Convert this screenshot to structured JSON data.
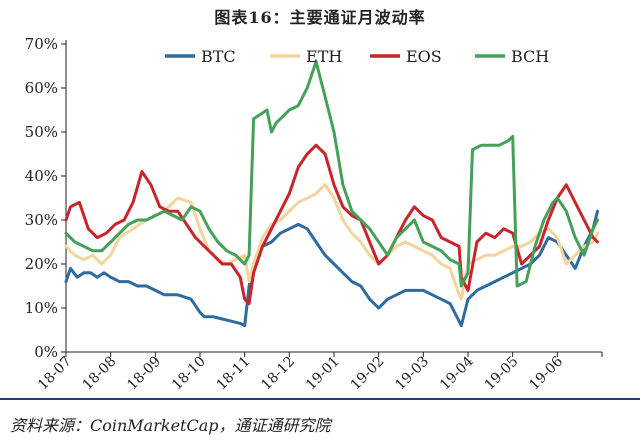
{
  "figure_title": "图表16：主要通证月波动率",
  "source": "资料来源：CoinMarketCap，通证通研究院",
  "chart_data": {
    "type": "line",
    "ylim": [
      0,
      70
    ],
    "yticks": [
      0,
      10,
      20,
      30,
      40,
      50,
      60,
      70
    ],
    "ytick_labels": [
      "0%",
      "10%",
      "20%",
      "30%",
      "40%",
      "50%",
      "60%",
      "70%"
    ],
    "x_range": [
      0,
      12
    ],
    "xtick_labels": [
      "18-07",
      "18-08",
      "18-09",
      "18-10",
      "18-11",
      "18-12",
      "19-01",
      "19-02",
      "19-03",
      "19-04",
      "19-05",
      "19-06"
    ],
    "grid": false,
    "legend": "top",
    "series": [
      {
        "name": "BTC",
        "color": "#2e6b9e",
        "x": [
          0,
          0.1,
          0.25,
          0.4,
          0.55,
          0.7,
          0.85,
          1.0,
          1.2,
          1.4,
          1.6,
          1.8,
          2.0,
          2.2,
          2.5,
          2.8,
          3.0,
          3.1,
          3.3,
          3.5,
          3.7,
          3.9,
          4.0,
          4.1,
          4.2,
          4.4,
          4.6,
          4.8,
          5.0,
          5.2,
          5.4,
          5.6,
          5.8,
          6.0,
          6.2,
          6.4,
          6.6,
          6.8,
          7.0,
          7.2,
          7.4,
          7.6,
          7.8,
          8.0,
          8.2,
          8.4,
          8.6,
          8.8,
          8.85,
          9.0,
          9.2,
          9.4,
          9.6,
          9.8,
          10.0,
          10.2,
          10.4,
          10.6,
          10.7,
          10.8,
          11.0,
          11.2,
          11.4,
          11.6,
          11.8,
          11.9
        ],
        "y": [
          16,
          19,
          17,
          18,
          18,
          17,
          18,
          17,
          16,
          16,
          15,
          15,
          14,
          13,
          13,
          12,
          9,
          8,
          8,
          7.5,
          7,
          6.5,
          6,
          15,
          20,
          24,
          25,
          27,
          28,
          29,
          28,
          25,
          22,
          20,
          18,
          16,
          15,
          12,
          10,
          12,
          13,
          14,
          14,
          14,
          13,
          12,
          11,
          7,
          6,
          12,
          14,
          15,
          16,
          17,
          18,
          19,
          20,
          22,
          24,
          26,
          25,
          22,
          19,
          24,
          28,
          32
        ]
      },
      {
        "name": "ETH",
        "color": "#f2d49c",
        "x": [
          0,
          0.2,
          0.4,
          0.6,
          0.8,
          1.0,
          1.2,
          1.5,
          1.8,
          2.0,
          2.2,
          2.5,
          2.8,
          3.0,
          3.2,
          3.4,
          3.6,
          3.8,
          4.0,
          4.1,
          4.2,
          4.4,
          4.6,
          4.8,
          5.0,
          5.2,
          5.4,
          5.6,
          5.8,
          6.0,
          6.2,
          6.4,
          6.6,
          6.8,
          7.0,
          7.2,
          7.4,
          7.6,
          7.8,
          8.0,
          8.2,
          8.4,
          8.6,
          8.8,
          8.85,
          9.0,
          9.2,
          9.4,
          9.6,
          9.8,
          10.0,
          10.2,
          10.4,
          10.6,
          10.8,
          11.0,
          11.2,
          11.4,
          11.6,
          11.8,
          11.9
        ],
        "y": [
          24,
          22,
          21,
          22,
          20,
          22,
          26,
          28,
          30,
          31,
          32,
          35,
          34,
          28,
          23,
          21,
          20,
          21,
          22,
          16,
          20,
          26,
          29,
          30,
          32,
          34,
          35,
          36,
          38,
          35,
          30,
          27,
          25,
          22,
          20,
          22,
          24,
          25,
          24,
          23,
          22,
          20,
          19,
          13,
          12,
          20,
          21,
          22,
          22,
          23,
          24,
          24,
          25,
          27,
          28,
          26,
          20,
          22,
          24,
          25,
          27
        ]
      },
      {
        "name": "EOS",
        "color": "#c8242b",
        "x": [
          0,
          0.1,
          0.3,
          0.5,
          0.7,
          0.9,
          1.1,
          1.3,
          1.5,
          1.7,
          1.9,
          2.1,
          2.3,
          2.5,
          2.7,
          2.9,
          3.1,
          3.3,
          3.5,
          3.7,
          3.9,
          4.0,
          4.1,
          4.2,
          4.4,
          4.6,
          4.8,
          5.0,
          5.2,
          5.4,
          5.6,
          5.8,
          6.0,
          6.2,
          6.4,
          6.6,
          6.8,
          7.0,
          7.2,
          7.4,
          7.6,
          7.8,
          8.0,
          8.2,
          8.4,
          8.6,
          8.8,
          8.85,
          9.0,
          9.2,
          9.4,
          9.6,
          9.8,
          10.0,
          10.2,
          10.4,
          10.6,
          10.8,
          11.0,
          11.2,
          11.4,
          11.6,
          11.8,
          11.9
        ],
        "y": [
          30,
          33,
          34,
          28,
          26,
          27,
          29,
          30,
          34,
          41,
          38,
          33,
          32,
          32,
          29,
          26,
          24,
          22,
          20,
          20,
          17,
          12,
          11,
          18,
          24,
          28,
          32,
          36,
          42,
          45,
          47,
          45,
          38,
          33,
          31,
          30,
          25,
          20,
          22,
          26,
          30,
          33,
          31,
          30,
          26,
          25,
          24,
          17,
          14,
          25,
          27,
          26,
          28,
          27,
          20,
          22,
          24,
          30,
          35,
          38,
          34,
          30,
          26,
          25
        ]
      },
      {
        "name": "BCH",
        "color": "#45a05a",
        "x": [
          0,
          0.2,
          0.4,
          0.6,
          0.8,
          1.0,
          1.2,
          1.4,
          1.6,
          1.8,
          2.0,
          2.2,
          2.4,
          2.6,
          2.8,
          3.0,
          3.2,
          3.4,
          3.6,
          3.8,
          4.0,
          4.1,
          4.2,
          4.35,
          4.5,
          4.6,
          4.7,
          4.8,
          5.0,
          5.2,
          5.3,
          5.4,
          5.5,
          5.6,
          5.7,
          5.8,
          6.0,
          6.2,
          6.4,
          6.6,
          6.8,
          7.0,
          7.2,
          7.4,
          7.6,
          7.8,
          8.0,
          8.2,
          8.4,
          8.6,
          8.8,
          8.85,
          9.0,
          9.1,
          9.3,
          9.5,
          9.7,
          9.9,
          10.0,
          10.1,
          10.3,
          10.5,
          10.7,
          10.9,
          11.0,
          11.2,
          11.4,
          11.6,
          11.8,
          11.9
        ],
        "y": [
          27,
          25,
          24,
          23,
          23,
          25,
          27,
          29,
          30,
          30,
          31,
          32,
          31,
          30,
          33,
          32,
          28,
          25,
          23,
          22,
          20,
          22,
          53,
          54,
          55,
          50,
          52,
          53,
          55,
          56,
          58,
          60,
          63,
          66,
          62,
          58,
          50,
          38,
          32,
          30,
          28,
          25,
          22,
          26,
          28,
          30,
          25,
          24,
          23,
          21,
          20,
          15,
          18,
          46,
          47,
          47,
          47,
          48,
          49,
          15,
          16,
          24,
          30,
          34,
          35,
          32,
          26,
          22,
          28,
          30
        ]
      }
    ]
  }
}
